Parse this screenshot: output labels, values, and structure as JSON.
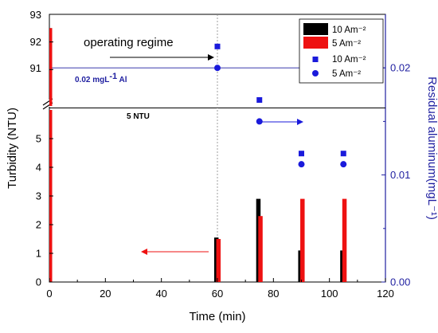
{
  "chart_data": {
    "type": "bar",
    "xlabel": "Time (min)",
    "ylabel": "Turbidity (NTU)",
    "y2label": "Residual aluminum(mgL⁻¹)",
    "xlim": [
      0,
      120
    ],
    "xticks": [
      "0",
      "20",
      "40",
      "60",
      "80",
      "100",
      "120"
    ],
    "ylim_lower": [
      0,
      6
    ],
    "yticks_lower": [
      "0",
      "1",
      "2",
      "3",
      "4",
      "5"
    ],
    "ylim_upper": [
      90,
      93
    ],
    "yticks_upper": [
      "91",
      "92",
      "93"
    ],
    "y2lim": [
      0,
      0.025
    ],
    "y2ticks": [
      "0.00",
      "0.01",
      "0.02"
    ],
    "axis_break": true,
    "legend_position": "top-right",
    "turbidity_series": [
      {
        "name": "10 Am⁻²",
        "color": "#000000",
        "x": [
          0,
          60,
          75,
          90,
          105
        ],
        "y": [
          92.5,
          1.55,
          2.9,
          1.1,
          1.1
        ]
      },
      {
        "name": "5 Am⁻²",
        "color": "#ee1111",
        "x": [
          0,
          60,
          75,
          90,
          105
        ],
        "y": [
          92.5,
          1.5,
          2.3,
          2.9,
          2.9
        ]
      }
    ],
    "aluminum_series": [
      {
        "name": "10 Am⁻²",
        "marker": "square",
        "color": "#1a1adb",
        "x": [
          60,
          75,
          90,
          105
        ],
        "y": [
          0.022,
          0.017,
          0.012,
          0.012
        ]
      },
      {
        "name": "5 Am⁻²",
        "marker": "circle",
        "color": "#1a1adb",
        "x": [
          60,
          75,
          90,
          105
        ],
        "y": [
          0.02,
          0.015,
          0.011,
          0.011
        ]
      }
    ],
    "reference_lines": {
      "aluminum_limit": {
        "value": 0.02,
        "label_main": "0.02 mgL",
        "label_sup": "-1",
        "label_tail": " Al"
      },
      "turbidity_limit": {
        "value": 5,
        "label": "5 NTU"
      },
      "operating_time": {
        "value": 60
      }
    },
    "annotations": {
      "operating_regime": "operating regime"
    }
  }
}
